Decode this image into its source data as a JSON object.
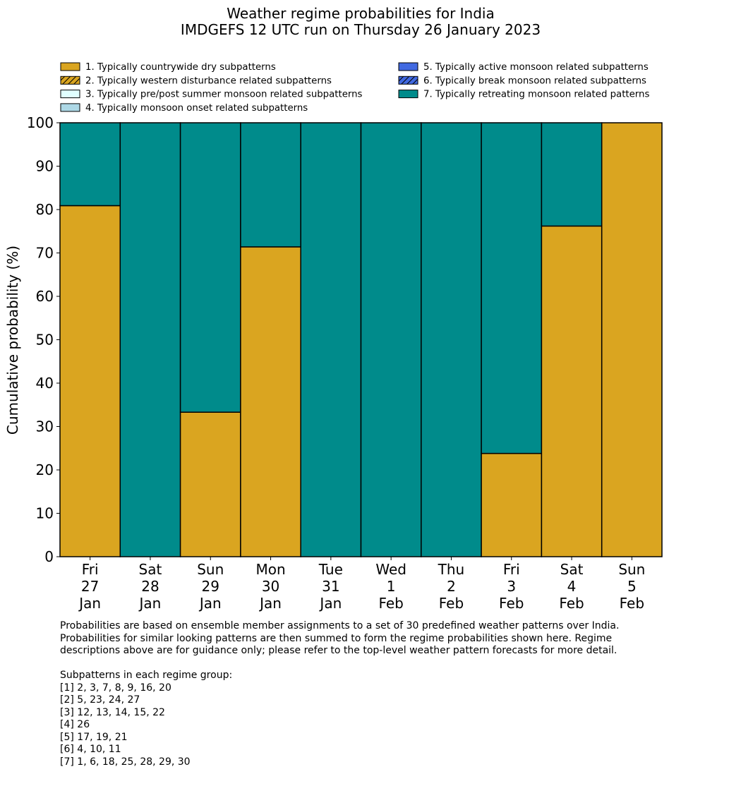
{
  "chart_data": {
    "type": "bar",
    "stacked": true,
    "title": "Weather regime probabilities for India",
    "subtitle": "IMDGEFS 12 UTC run on Thursday 26 January 2023",
    "xlabel": "",
    "ylabel": "Cumulative probability (%)",
    "ylim": [
      0,
      100
    ],
    "yticks": [
      0,
      10,
      20,
      30,
      40,
      50,
      60,
      70,
      80,
      90,
      100
    ],
    "grid": false,
    "legend_position": "top",
    "categories": [
      [
        "Fri",
        "27",
        "Jan"
      ],
      [
        "Sat",
        "28",
        "Jan"
      ],
      [
        "Sun",
        "29",
        "Jan"
      ],
      [
        "Mon",
        "30",
        "Jan"
      ],
      [
        "Tue",
        "31",
        "Jan"
      ],
      [
        "Wed",
        "1",
        "Feb"
      ],
      [
        "Thu",
        "2",
        "Feb"
      ],
      [
        "Fri",
        "3",
        "Feb"
      ],
      [
        "Sat",
        "4",
        "Feb"
      ],
      [
        "Sun",
        "5",
        "Feb"
      ]
    ],
    "series": [
      {
        "name": "1. Typically countrywide dry subpatterns",
        "color": "#DAA520",
        "hatch": false,
        "values": [
          80.9,
          0,
          33.3,
          71.4,
          0,
          0,
          0,
          23.8,
          76.2,
          100
        ]
      },
      {
        "name": "2. Typically western disturbance related subpatterns",
        "color": "#DAA520",
        "hatch": true,
        "values": [
          0,
          0,
          0,
          0,
          0,
          0,
          0,
          0,
          0,
          0
        ]
      },
      {
        "name": "3. Typically pre/post summer monsoon related subpatterns",
        "color": "#E0FFFF",
        "hatch": false,
        "values": [
          0,
          0,
          0,
          0,
          0,
          0,
          0,
          0,
          0,
          0
        ]
      },
      {
        "name": "4. Typically monsoon onset related subpatterns",
        "color": "#ADD8E6",
        "hatch": false,
        "values": [
          0,
          0,
          0,
          0,
          0,
          0,
          0,
          0,
          0,
          0
        ]
      },
      {
        "name": "5. Typically active monsoon related subpatterns",
        "color": "#4169E1",
        "hatch": false,
        "values": [
          0,
          0,
          0,
          0,
          0,
          0,
          0,
          0,
          0,
          0
        ]
      },
      {
        "name": "6. Typically break monsoon related subpatterns",
        "color": "#4169E1",
        "hatch": true,
        "values": [
          0,
          0,
          0,
          0,
          0,
          0,
          0,
          0,
          0,
          0
        ]
      },
      {
        "name": "7. Typically retreating monsoon related patterns",
        "color": "#008B8B",
        "hatch": false,
        "values": [
          19.1,
          100,
          66.7,
          28.6,
          100,
          100,
          100,
          76.2,
          23.8,
          0
        ]
      }
    ]
  },
  "notes": {
    "lines": [
      "Probabilities are based on ensemble member assignments to a set of 30 predefined weather patterns over India.",
      "Probabilities for similar looking patterns are then summed to form the regime probabilities shown here. Regime",
      "descriptions above are for guidance only; please refer to the top-level weather pattern forecasts for more detail."
    ],
    "groups_heading": "Subpatterns in each regime group:",
    "groups": [
      "[1] 2, 3, 7, 8, 9, 16, 20",
      "[2] 5, 23, 24, 27",
      "[3] 12, 13, 14, 15, 22",
      "[4] 26",
      "[5] 17, 19, 21",
      "[6] 4, 10, 11",
      "[7] 1, 6, 18, 25, 28, 29, 30"
    ]
  }
}
